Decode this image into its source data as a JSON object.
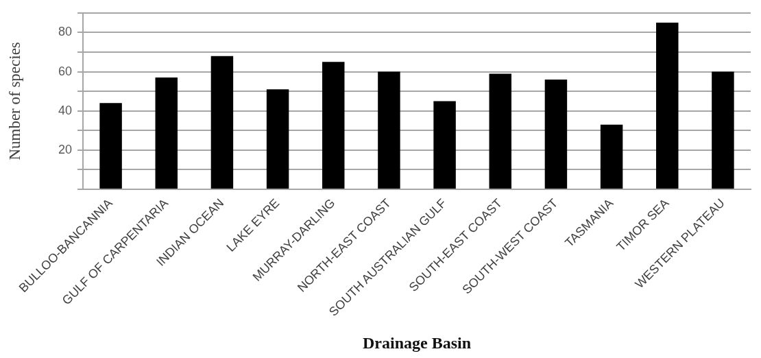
{
  "chart_data": {
    "type": "bar",
    "xlabel": "Drainage Basin",
    "ylabel": "Number of species",
    "categories": [
      "BULLOO-BANCANNIA",
      "GULF OF CARPENTARIA",
      "INDIAN OCEAN",
      "LAKE EYRE",
      "MURRAY-DARLING",
      "NORTH-EAST COAST",
      "SOUTH AUSTRALIAN GULF",
      "SOUTH-EAST COAST",
      "SOUTH-WEST COAST",
      "TASMANIA",
      "TIMOR SEA",
      "WESTERN PLATEAU"
    ],
    "values": [
      44,
      57,
      68,
      51,
      65,
      60,
      45,
      59,
      56,
      33,
      85,
      60
    ],
    "color": "#000000",
    "ylim": [
      0,
      90
    ],
    "yticks": [
      {
        "value": 0,
        "label": null
      },
      {
        "value": 10,
        "label": null
      },
      20,
      {
        "value": 30,
        "label": null
      },
      40,
      {
        "value": 50,
        "label": null
      },
      60,
      {
        "value": 70,
        "label": null
      },
      80,
      {
        "value": 90,
        "label": null
      }
    ],
    "grid": "y"
  }
}
